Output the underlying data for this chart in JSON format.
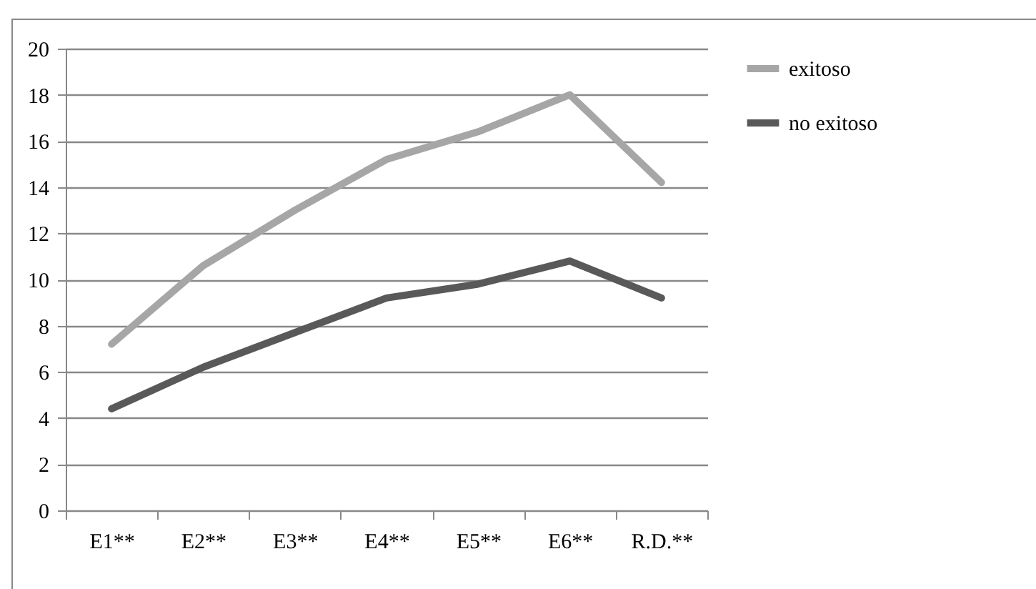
{
  "chart_data": {
    "type": "line",
    "categories": [
      "E1**",
      "E2**",
      "E3**",
      "E4**",
      "E5**",
      "E6**",
      "R.D.**"
    ],
    "series": [
      {
        "name": "exitoso",
        "color": "#a6a6a6",
        "values": [
          7.2,
          10.6,
          13.0,
          15.2,
          16.4,
          18.0,
          14.2
        ]
      },
      {
        "name": "no exitoso",
        "color": "#595959",
        "values": [
          4.4,
          6.2,
          7.7,
          9.2,
          9.8,
          10.8,
          9.2
        ]
      }
    ],
    "ylim": [
      0,
      20
    ],
    "yticks": [
      0,
      2,
      4,
      6,
      8,
      10,
      12,
      14,
      16,
      18,
      20
    ],
    "grid": "y",
    "legend": "right",
    "marker": "none",
    "line_style": "solid"
  }
}
